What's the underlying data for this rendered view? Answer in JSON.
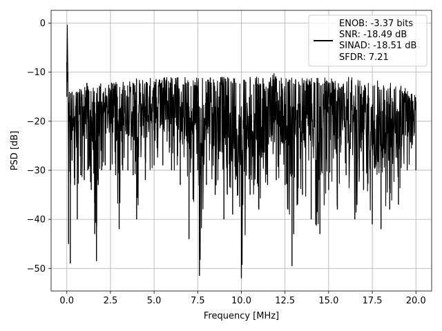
{
  "chart_data": {
    "type": "line",
    "title": "",
    "xlabel": "Frequency [MHz]",
    "ylabel": "PSD [dB]",
    "xlim": [
      -0.9,
      20.9
    ],
    "ylim": [
      -54.6,
      2.6
    ],
    "xticks": [
      0.0,
      2.5,
      5.0,
      7.5,
      10.0,
      12.5,
      15.0,
      17.5,
      20.0
    ],
    "xtick_labels": [
      "0.0",
      "2.5",
      "5.0",
      "7.5",
      "10.0",
      "12.5",
      "15.0",
      "17.5",
      "20.0"
    ],
    "yticks": [
      0,
      -10,
      -20,
      -30,
      -40,
      -50
    ],
    "ytick_labels": [
      "0",
      "−10",
      "−20",
      "−30",
      "−40",
      "−50"
    ],
    "grid": true,
    "legend_position": "top-right",
    "legend_entries": [
      "ENOB: -3.37 bits",
      "SNR: -18.49 dB",
      "SINAD: -18.51 dB",
      "SFDR: 7.21"
    ],
    "series": [
      {
        "color": "#000000",
        "x": [
          0.0,
          0.03,
          0.06,
          0.1,
          0.15,
          0.2,
          0.3,
          0.45,
          0.6,
          0.8,
          1.0,
          1.2,
          1.4,
          1.6,
          1.7,
          1.8,
          2.0,
          2.2,
          2.5,
          2.8,
          3.0,
          3.2,
          3.5,
          3.8,
          4.0,
          4.5,
          5.0,
          5.5,
          6.0,
          6.5,
          7.0,
          7.5,
          7.6,
          8.0,
          8.5,
          9.0,
          9.5,
          10.0,
          10.5,
          11.0,
          11.5,
          12.0,
          12.5,
          12.9,
          13.0,
          13.5,
          14.0,
          14.5,
          15.0,
          15.5,
          16.0,
          16.5,
          17.0,
          17.5,
          18.0,
          18.5,
          19.0,
          19.5,
          20.0
        ],
        "values": [
          -15,
          0,
          -12,
          -45,
          -20,
          -49,
          -28,
          -33,
          -40,
          -31,
          -32,
          -30,
          -34,
          -43,
          -48.5,
          -33,
          -30,
          -29,
          -30,
          -31,
          -42,
          -30,
          -30,
          -31,
          -40,
          -32,
          -29,
          -29,
          -30,
          -33,
          -44,
          -30,
          -51.5,
          -33,
          -35,
          -40,
          -39,
          -52,
          -35,
          -38,
          -33,
          -32,
          -33,
          -49.5,
          -43,
          -35,
          -40,
          -43,
          -34,
          -38,
          -31,
          -40,
          -34,
          -41,
          -42,
          -38,
          -37,
          -30,
          -30
        ],
        "upper": [
          -8,
          0,
          -10,
          -15,
          -14,
          -14,
          -13,
          -13,
          -13,
          -13,
          -12,
          -12,
          -13,
          -12,
          -13,
          -13,
          -12,
          -13,
          -12,
          -12,
          -12,
          -12,
          -12,
          -11,
          -11,
          -11,
          -11,
          -11,
          -11,
          -11,
          -11,
          -11,
          -11,
          -11,
          -11,
          -11,
          -11,
          -11,
          -11,
          -11,
          -11,
          -10,
          -11,
          -11,
          -11,
          -11,
          -11,
          -11,
          -11,
          -12,
          -11,
          -11,
          -12,
          -11,
          -12,
          -12,
          -12,
          -13,
          -14
        ]
      }
    ]
  }
}
